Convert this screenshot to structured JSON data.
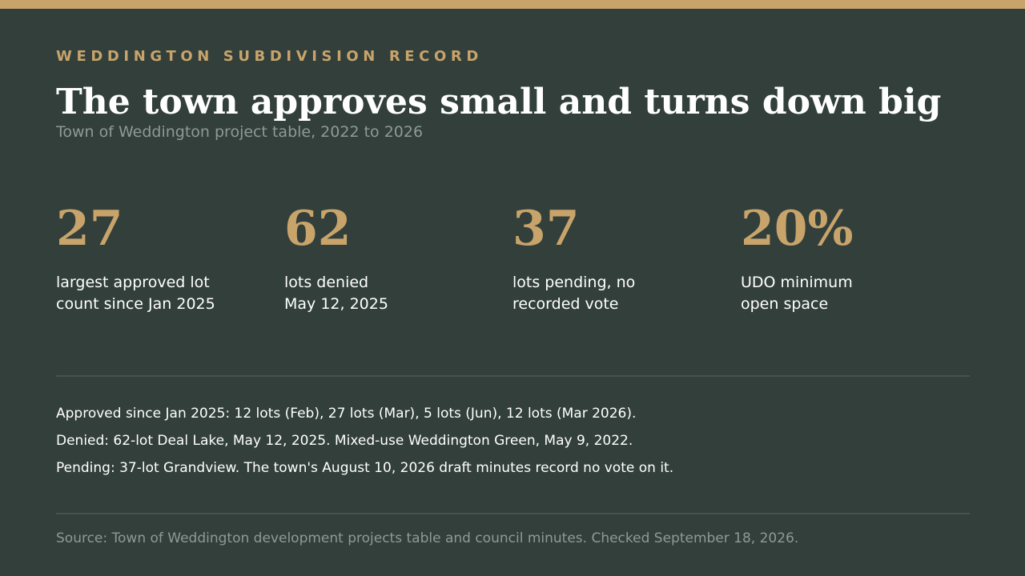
{
  "accent_color": "#c8a46b",
  "background_color": "#323f3b",
  "kicker": "WEDDINGTON SUBDIVISION RECORD",
  "headline": "The town approves small and turns down big",
  "subtitle": "Town of Weddington project table, 2022 to 2026",
  "stats": [
    {
      "value": "27",
      "label_lines": [
        "largest approved lot",
        "count since Jan 2025"
      ]
    },
    {
      "value": "62",
      "label_lines": [
        "lots denied",
        "May 12, 2025"
      ]
    },
    {
      "value": "37",
      "label_lines": [
        "lots pending, no",
        "recorded vote"
      ]
    },
    {
      "value": "20%",
      "label_lines": [
        "UDO minimum",
        "open space"
      ]
    }
  ],
  "notes": [
    "Approved since Jan 2025: 12 lots (Feb), 27 lots (Mar), 5 lots (Jun), 12 lots (Mar 2026).",
    "Denied: 62-lot Deal Lake, May 12, 2025. Mixed-use Weddington Green, May 9, 2022.",
    "Pending: 37-lot Grandview. The town's August 10, 2026 draft minutes record no vote on it."
  ],
  "source": "Source: Town of Weddington development projects table and council minutes. Checked September 18, 2026."
}
